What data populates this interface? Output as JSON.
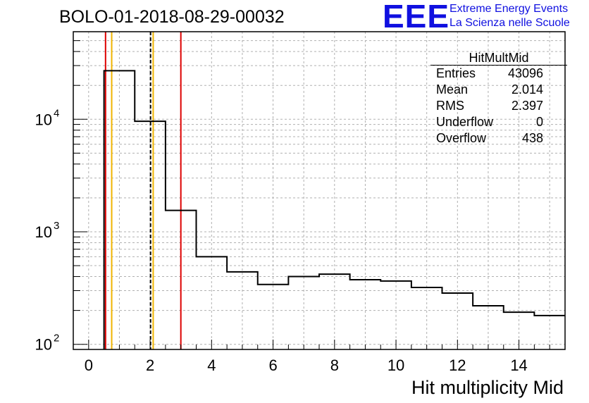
{
  "header": {
    "title": "BOLO-01-2018-08-29-00032"
  },
  "logo": {
    "mark": "EEE",
    "line1": "Extreme Energy Events",
    "line2": "La Scienza nelle Scuole",
    "color": "#1010e0"
  },
  "stats": {
    "name": "HitMultMid",
    "rows": [
      {
        "label": "Entries",
        "value": "43096"
      },
      {
        "label": "Mean",
        "value": "2.014"
      },
      {
        "label": "RMS",
        "value": "2.397"
      },
      {
        "label": "Underflow",
        "value": "0"
      },
      {
        "label": "Overflow",
        "value": "438"
      }
    ]
  },
  "chart_data": {
    "type": "bar",
    "xlabel": "Hit multiplicity Mid",
    "ylabel": "",
    "xlim": [
      -0.5,
      15.5
    ],
    "ylim": [
      90,
      60000
    ],
    "yscale": "log",
    "grid": true,
    "bins": [
      {
        "low": 0.5,
        "high": 1.5,
        "value": 27000
      },
      {
        "low": 1.5,
        "high": 2.5,
        "value": 9600
      },
      {
        "low": 2.5,
        "high": 3.5,
        "value": 1550
      },
      {
        "low": 3.5,
        "high": 4.5,
        "value": 600
      },
      {
        "low": 4.5,
        "high": 5.5,
        "value": 440
      },
      {
        "low": 5.5,
        "high": 6.5,
        "value": 340
      },
      {
        "low": 6.5,
        "high": 7.5,
        "value": 400
      },
      {
        "low": 7.5,
        "high": 8.5,
        "value": 420
      },
      {
        "low": 8.5,
        "high": 9.5,
        "value": 375
      },
      {
        "low": 9.5,
        "high": 10.5,
        "value": 365
      },
      {
        "low": 10.5,
        "high": 11.5,
        "value": 320
      },
      {
        "low": 11.5,
        "high": 12.5,
        "value": 285
      },
      {
        "low": 12.5,
        "high": 13.5,
        "value": 220
      },
      {
        "low": 13.5,
        "high": 14.5,
        "value": 193
      },
      {
        "low": 14.5,
        "high": 15.5,
        "value": 180
      }
    ],
    "x_ticks": [
      "0",
      "2",
      "4",
      "6",
      "8",
      "10",
      "12",
      "14"
    ],
    "y_tick_labels": [
      {
        "value": 100,
        "base": "10",
        "exp": "2"
      },
      {
        "value": 1000,
        "base": "10",
        "exp": "3"
      },
      {
        "value": 10000,
        "base": "10",
        "exp": "4"
      }
    ],
    "markers": [
      {
        "x": 0.55,
        "color": "#dd0000",
        "style": "solid"
      },
      {
        "x": 0.75,
        "color": "#f0b400",
        "style": "solid"
      },
      {
        "x": 2.014,
        "color": "#000000",
        "style": "dashed"
      },
      {
        "x": 2.1,
        "color": "#f0b400",
        "style": "solid"
      },
      {
        "x": 3.0,
        "color": "#dd0000",
        "style": "solid"
      }
    ]
  }
}
